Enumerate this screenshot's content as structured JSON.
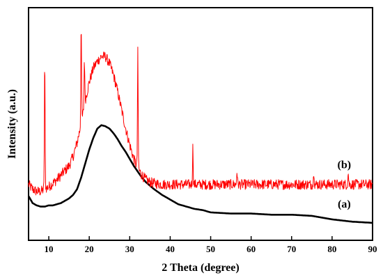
{
  "chart_data": {
    "type": "line",
    "title": "",
    "xlabel": "2 Theta (degree)",
    "ylabel": "Intensity (a.u.)",
    "xlim": [
      5,
      90
    ],
    "ylim": [
      0,
      100
    ],
    "y_tick_labels": false,
    "x_ticks": [
      10,
      20,
      30,
      40,
      50,
      60,
      70,
      80,
      90
    ],
    "grid": false,
    "legend": "none",
    "series": [
      {
        "name": "(a)",
        "color": "#000000",
        "label_at": [
          83,
          14
        ],
        "x": [
          5,
          6,
          7,
          8,
          9,
          10,
          11,
          12,
          13,
          14,
          15,
          16,
          17,
          18,
          19,
          20,
          21,
          22,
          23,
          24,
          25,
          26,
          27,
          28,
          29,
          30,
          31,
          32,
          33,
          34,
          35,
          36,
          38,
          40,
          42,
          44,
          46,
          48,
          50,
          55,
          60,
          65,
          70,
          75,
          80,
          85,
          90
        ],
        "y": [
          19,
          16,
          15,
          14.5,
          14.5,
          15,
          15,
          15.5,
          16,
          17,
          18,
          19.5,
          22,
          27,
          33,
          39,
          44,
          48,
          49.5,
          49,
          48,
          46,
          43.5,
          40.5,
          38,
          35,
          32,
          29.5,
          27,
          25,
          23.5,
          22,
          19.5,
          17.5,
          15.5,
          14.5,
          13.5,
          13,
          12,
          11.5,
          11.5,
          11,
          11,
          10.5,
          9,
          8,
          7.5
        ]
      },
      {
        "name": "(b)",
        "color": "#ff0000",
        "label_at": [
          83,
          31
        ],
        "noise": 2.2,
        "x": [
          5,
          6,
          7,
          8,
          9,
          10,
          11,
          12,
          13,
          14,
          15,
          16,
          17,
          18,
          19,
          20,
          21,
          22,
          23,
          24,
          25,
          26,
          27,
          28,
          29,
          30,
          31,
          32,
          33,
          34,
          35,
          36,
          38,
          40,
          45,
          50,
          55,
          60,
          70,
          80,
          90
        ],
        "y": [
          24,
          22,
          21,
          21,
          22,
          23,
          24.5,
          26,
          28,
          30,
          32,
          36,
          42,
          50,
          60,
          68,
          74,
          77,
          79,
          79,
          76,
          71,
          64,
          56,
          48,
          41,
          35,
          31,
          28,
          26,
          25,
          24.5,
          24,
          24,
          24,
          24,
          24,
          24,
          24,
          24,
          24
        ],
        "peaks": [
          {
            "x": 9.0,
            "y": 78
          },
          {
            "x": 18.0,
            "y": 95
          },
          {
            "x": 18.8,
            "y": 78
          },
          {
            "x": 32.0,
            "y": 81
          },
          {
            "x": 45.6,
            "y": 40
          },
          {
            "x": 56.5,
            "y": 30
          },
          {
            "x": 75.5,
            "y": 30
          },
          {
            "x": 84.0,
            "y": 29
          }
        ]
      }
    ]
  }
}
